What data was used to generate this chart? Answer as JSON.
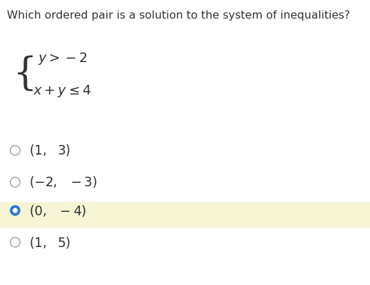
{
  "question": "Which ordered pair is a solution to the system of inequalities?",
  "system_line1": "y > -2",
  "system_line2": "x + y ≤ 4",
  "options": [
    {
      "label": "(1,  3)",
      "selected": false
    },
    {
      "label": "(−2,  − 3)",
      "selected": false
    },
    {
      "label": "(0,  − 4)",
      "selected": true
    },
    {
      "label": "(1,  5)",
      "selected": false
    }
  ],
  "selected_bg_color": "#f5f5d5",
  "selected_dot_color": "#2979cc",
  "unselected_dot_color": "#aaaaaa",
  "text_color": "#333333",
  "bg_color": "#ffffff",
  "question_fontsize": 11.5,
  "option_fontsize": 13.5,
  "system_fontsize": 14
}
